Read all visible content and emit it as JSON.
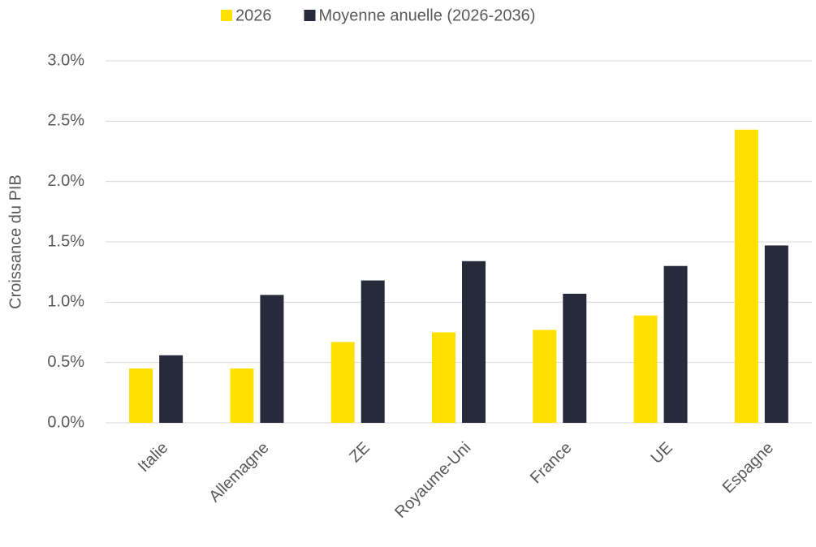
{
  "chart_data": {
    "type": "bar",
    "y_label": "Croissance du PIB",
    "categories": [
      "Italie",
      "Allemagne",
      "ZE",
      "Royaume-Uni",
      "France",
      "UE",
      "Espagne"
    ],
    "series": [
      {
        "name": "2026",
        "color": "#ffe000",
        "values": [
          0.45,
          0.45,
          0.67,
          0.75,
          0.77,
          0.89,
          2.43
        ]
      },
      {
        "name": "Moyenne anuelle (2026-2036)",
        "color": "#262a3b",
        "values": [
          0.56,
          1.06,
          1.18,
          1.34,
          1.07,
          1.3,
          1.47
        ]
      }
    ],
    "ylim": [
      0,
      3.0
    ],
    "yticks": [
      {
        "value": 0,
        "label": "0.0%"
      },
      {
        "value": 0.5,
        "label": "0.5%"
      },
      {
        "value": 1.0,
        "label": "1.0%"
      },
      {
        "value": 1.5,
        "label": "1.5%"
      },
      {
        "value": 2.0,
        "label": "2.0%"
      },
      {
        "value": 2.5,
        "label": "2.5%"
      },
      {
        "value": 3.0,
        "label": "3.0%"
      }
    ],
    "grid": true
  }
}
